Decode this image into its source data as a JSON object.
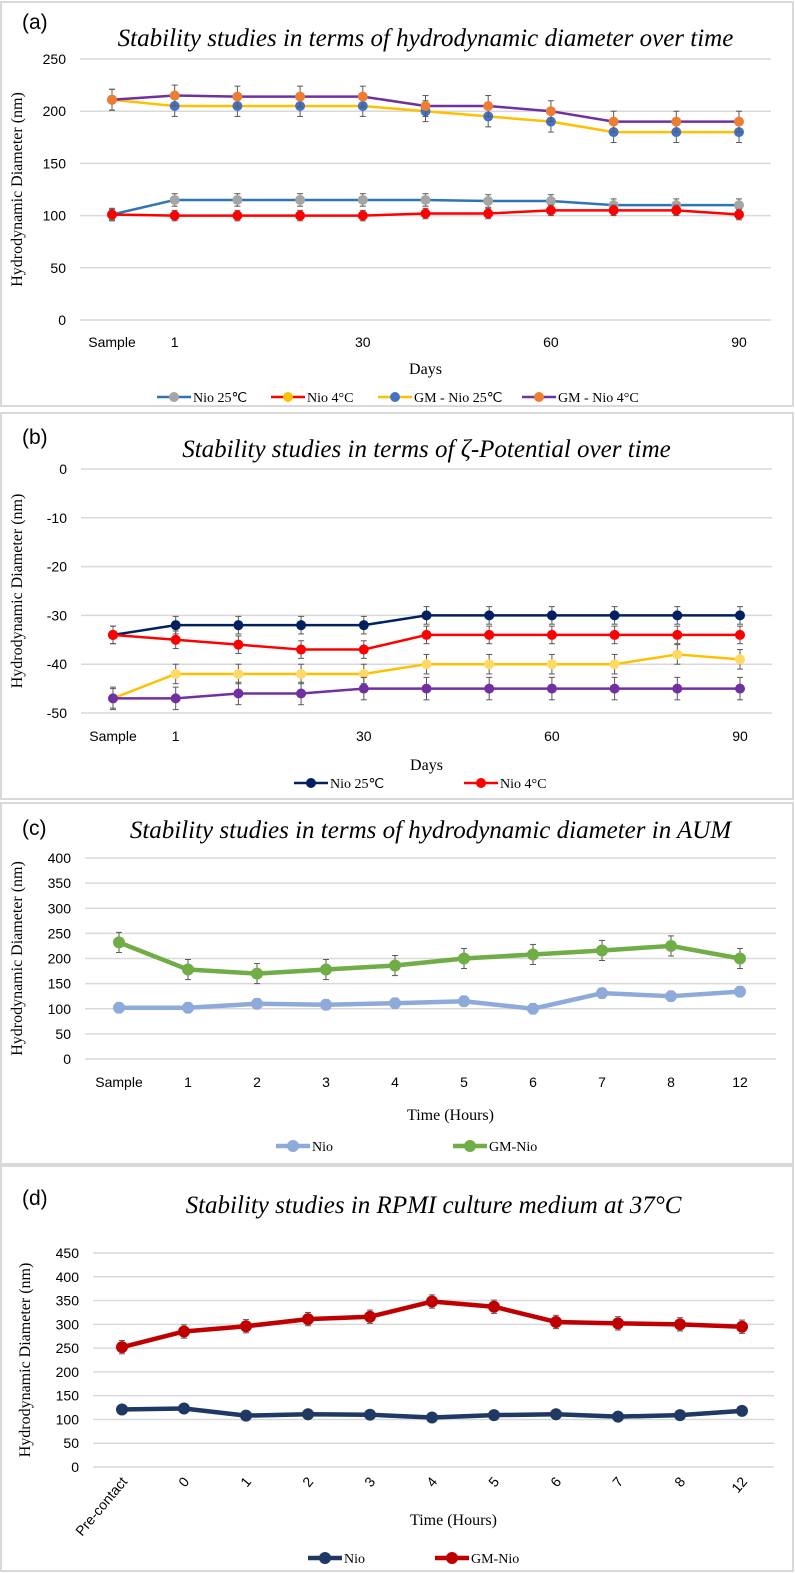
{
  "chart_data": [
    {
      "type": "line",
      "panel_label": "(a)",
      "title": "Stability studies in terms of hydrodynamic diameter over time",
      "xlabel": "Days",
      "ylabel": "Hydrodynamic Diameter (nm)",
      "categories": [
        "Sample",
        "1",
        "",
        "",
        "30",
        "",
        "",
        "60",
        "",
        "",
        "90"
      ],
      "ylim": [
        0,
        250
      ],
      "yticks": [
        0,
        50,
        100,
        150,
        200,
        250
      ],
      "grid": true,
      "legend_position": "bottom",
      "series": [
        {
          "name": "Nio 25℃",
          "line_color": "#2e75b6",
          "marker_color": "#a5a5a5",
          "legend_marker_color": "#a5a5a5",
          "error": 6,
          "values": [
            101,
            115,
            115,
            115,
            115,
            115,
            114,
            114,
            110,
            110,
            110
          ]
        },
        {
          "name": "Nio 4°C",
          "line_color": "#ff0000",
          "marker_color": "#ff0000",
          "legend_marker_color": "#ffc000",
          "error": 5,
          "values": [
            101,
            100,
            100,
            100,
            100,
            102,
            102,
            105,
            105,
            105,
            101
          ]
        },
        {
          "name": "GM - Nio 25℃",
          "line_color": "#ffc000",
          "marker_color": "#4472c4",
          "legend_marker_color": "#4472c4",
          "error": 10,
          "values": [
            211,
            205,
            205,
            205,
            205,
            200,
            195,
            190,
            180,
            180,
            180
          ]
        },
        {
          "name": "GM - Nio 4°C",
          "line_color": "#7030a0",
          "marker_color": "#ed7d31",
          "legend_marker_color": "#ed7d31",
          "error": 10,
          "values": [
            211,
            215,
            214,
            214,
            214,
            205,
            205,
            200,
            190,
            190,
            190
          ]
        }
      ]
    },
    {
      "type": "line",
      "panel_label": "(b)",
      "title": "Stability studies in terms of ζ-Potential over time",
      "xlabel": "Days",
      "ylabel": "Hydrodynamic Diameter (nm)",
      "categories": [
        "Sample",
        "1",
        "",
        "",
        "30",
        "",
        "",
        "60",
        "",
        "",
        "90"
      ],
      "ylim": [
        -50,
        0
      ],
      "yticks": [
        -50,
        -40,
        -30,
        -20,
        -10,
        0
      ],
      "grid": true,
      "legend_position": "bottom",
      "series": [
        {
          "name": "Nio 25℃",
          "line_color": "#002060",
          "marker_color": "#002060",
          "legend_marker_color": "#002060",
          "error": 1.8,
          "values": [
            -34,
            -32,
            -32,
            -32,
            -32,
            -30,
            -30,
            -30,
            -30,
            -30,
            -30
          ],
          "in_legend": true
        },
        {
          "name": "Nio 4°C",
          "line_color": "#ff0000",
          "marker_color": "#ff0000",
          "legend_marker_color": "#ff0000",
          "error": 1.8,
          "values": [
            -34,
            -35,
            -36,
            -37,
            -37,
            -34,
            -34,
            -34,
            -34,
            -34,
            -34
          ],
          "in_legend": true
        },
        {
          "name": "",
          "line_color": "#ffc000",
          "marker_color": "#ffd966",
          "legend_marker_color": "#ffd966",
          "error": 2,
          "values": [
            -47,
            -42,
            -42,
            -42,
            -42,
            -40,
            -40,
            -40,
            -40,
            -38,
            -39
          ],
          "in_legend": false
        },
        {
          "name": "",
          "line_color": "#7030a0",
          "marker_color": "#7030a0",
          "legend_marker_color": "#7030a0",
          "error": 2.3,
          "values": [
            -47,
            -47,
            -46,
            -46,
            -45,
            -45,
            -45,
            -45,
            -45,
            -45,
            -45
          ],
          "in_legend": false
        }
      ]
    },
    {
      "type": "line",
      "panel_label": "(c)",
      "title": "Stability studies in terms of hydrodynamic diameter in AUM",
      "xlabel": "Time (Hours)",
      "ylabel": "Hydrodynamic Diameter (nm)",
      "categories": [
        "Sample",
        "1",
        "2",
        "3",
        "4",
        "5",
        "6",
        "7",
        "8",
        "12"
      ],
      "ylim": [
        0,
        400
      ],
      "yticks": [
        0,
        50,
        100,
        150,
        200,
        250,
        300,
        350,
        400
      ],
      "grid": true,
      "legend_position": "bottom",
      "series": [
        {
          "name": "Nio",
          "line_color": "#8eaadb",
          "marker_color": "#8eaadb",
          "legend_marker_color": "#8eaadb",
          "error": 10,
          "values": [
            102,
            102,
            110,
            108,
            111,
            115,
            100,
            131,
            125,
            134
          ]
        },
        {
          "name": "GM-Nio",
          "line_color": "#70ad47",
          "marker_color": "#70ad47",
          "legend_marker_color": "#70ad47",
          "error": 20,
          "values": [
            232,
            178,
            170,
            178,
            186,
            200,
            208,
            216,
            225,
            200
          ]
        }
      ]
    },
    {
      "type": "line",
      "panel_label": "(d)",
      "title": "Stability studies in RPMI  culture medium at 37°C",
      "xlabel": "Time (Hours)",
      "ylabel": "Hydrodynamic Diameter (nm)",
      "categories": [
        "Pre-contact",
        "0",
        "1",
        "2",
        "3",
        "4",
        "5",
        "6",
        "7",
        "8",
        "12"
      ],
      "ylim": [
        0,
        450
      ],
      "yticks": [
        0,
        50,
        100,
        150,
        200,
        250,
        300,
        350,
        400,
        450
      ],
      "grid": true,
      "legend_position": "bottom",
      "series": [
        {
          "name": "Nio",
          "line_color": "#203864",
          "marker_color": "#203864",
          "legend_marker_color": "#203864",
          "error": 3,
          "values": [
            121,
            123,
            108,
            111,
            110,
            104,
            109,
            111,
            106,
            109,
            118
          ]
        },
        {
          "name": "GM-Nio",
          "line_color": "#c00000",
          "marker_color": "#c00000",
          "legend_marker_color": "#c00000",
          "error": 14,
          "values": [
            252,
            285,
            296,
            311,
            316,
            348,
            337,
            305,
            302,
            300,
            295
          ]
        }
      ]
    }
  ]
}
